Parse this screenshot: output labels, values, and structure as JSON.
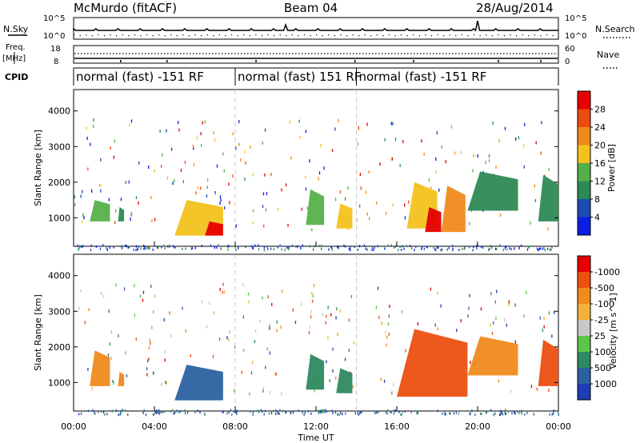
{
  "header": {
    "station": "McMurdo (fitACF)",
    "beam": "Beam 04",
    "date": "28/Aug/2014"
  },
  "noise_panel": {
    "left_label": "N.Sky",
    "right_label": "N.Search",
    "left_ticks": [
      "10^5",
      "10^0"
    ],
    "right_ticks": [
      "10^5",
      "10^0"
    ]
  },
  "freq_panel": {
    "left_label_top": "Freq.",
    "left_label_unit": "[MHz]",
    "left_ticks": [
      "18",
      "8"
    ],
    "right_label": "Nave",
    "right_ticks": [
      "60",
      "0"
    ]
  },
  "cpid": {
    "label": "CPID",
    "segments": [
      {
        "text": "normal (fast) -151 RF",
        "start_hour": 0,
        "end_hour": 8
      },
      {
        "text": "normal (fast) 151 RF",
        "start_hour": 8,
        "end_hour": 14
      },
      {
        "text": "normal (fast) -151 RF",
        "start_hour": 14,
        "end_hour": 24
      }
    ]
  },
  "colors": {
    "power_scale": [
      "#0a1ee6",
      "#1e4ab4",
      "#2e8a55",
      "#56b04a",
      "#f2c21e",
      "#f08a1c",
      "#ec4c10",
      "#e60000"
    ],
    "velocity_scale": [
      "#1e3cb4",
      "#2a62a0",
      "#2e8a60",
      "#5cc448",
      "#c8c8c8",
      "#f2b23c",
      "#f08a1c",
      "#ec5010",
      "#e60000"
    ]
  },
  "chart_data": [
    {
      "type": "heatmap",
      "title": "Power",
      "ylabel": "Slant Range [km]",
      "xlabel": "Time UT",
      "xlim": [
        0,
        24
      ],
      "ylim": [
        200,
        4600
      ],
      "x_ticks": [
        "00:00",
        "04:00",
        "08:00",
        "12:00",
        "16:00",
        "20:00",
        "00:00"
      ],
      "y_ticks": [
        1000,
        2000,
        3000,
        4000
      ],
      "colorbar": {
        "label": "Power [dB]",
        "ticks": [
          4,
          8,
          12,
          16,
          20,
          24,
          28
        ],
        "range": [
          0,
          32
        ]
      },
      "patches": [
        {
          "t0": 0.8,
          "t1": 1.8,
          "r0": 900,
          "r1": 1500,
          "value": 12
        },
        {
          "t0": 2.2,
          "t1": 2.5,
          "r0": 900,
          "r1": 1300,
          "value": 10
        },
        {
          "t0": 5.0,
          "t1": 7.4,
          "r0": 500,
          "r1": 1500,
          "value": 18
        },
        {
          "t0": 6.5,
          "t1": 7.4,
          "r0": 500,
          "r1": 900,
          "value": 28
        },
        {
          "t0": 11.5,
          "t1": 12.4,
          "r0": 800,
          "r1": 1800,
          "value": 14
        },
        {
          "t0": 13.0,
          "t1": 13.8,
          "r0": 700,
          "r1": 1400,
          "value": 18
        },
        {
          "t0": 16.5,
          "t1": 18.0,
          "r0": 700,
          "r1": 2000,
          "value": 16
        },
        {
          "t0": 17.4,
          "t1": 18.2,
          "r0": 600,
          "r1": 1300,
          "value": 28
        },
        {
          "t0": 18.2,
          "t1": 19.4,
          "r0": 600,
          "r1": 1900,
          "value": 22
        },
        {
          "t0": 19.5,
          "t1": 22.0,
          "r0": 1200,
          "r1": 2300,
          "value": 8
        },
        {
          "t0": 23.0,
          "t1": 24.0,
          "r0": 900,
          "r1": 2200,
          "value": 8
        }
      ]
    },
    {
      "type": "heatmap",
      "title": "Velocity",
      "ylabel": "Slant Range [km]",
      "xlabel": "Time UT",
      "xlim": [
        0,
        24
      ],
      "ylim": [
        200,
        4600
      ],
      "x_ticks": [
        "00:00",
        "04:00",
        "08:00",
        "12:00",
        "16:00",
        "20:00",
        "00:00"
      ],
      "y_ticks": [
        1000,
        2000,
        3000,
        4000
      ],
      "colorbar": {
        "label": "Velocity [m s^-1]",
        "ticks": [
          "1000",
          "500",
          "100",
          "25",
          "-25",
          "-100",
          "-500",
          "-1000"
        ]
      },
      "patches": [
        {
          "t0": 0.8,
          "t1": 1.8,
          "r0": 900,
          "r1": 1900,
          "value": -100
        },
        {
          "t0": 2.2,
          "t1": 2.5,
          "r0": 900,
          "r1": 1300,
          "value": -100
        },
        {
          "t0": 5.0,
          "t1": 7.4,
          "r0": 500,
          "r1": 1500,
          "value": 500
        },
        {
          "t0": 11.5,
          "t1": 12.4,
          "r0": 800,
          "r1": 1800,
          "value": 100
        },
        {
          "t0": 13.0,
          "t1": 13.8,
          "r0": 700,
          "r1": 1400,
          "value": 100
        },
        {
          "t0": 16.0,
          "t1": 19.5,
          "r0": 600,
          "r1": 2500,
          "value": -500
        },
        {
          "t0": 19.5,
          "t1": 22.0,
          "r0": 1200,
          "r1": 2300,
          "value": -100
        },
        {
          "t0": 23.0,
          "t1": 24.0,
          "r0": 900,
          "r1": 2200,
          "value": -500
        }
      ]
    }
  ]
}
